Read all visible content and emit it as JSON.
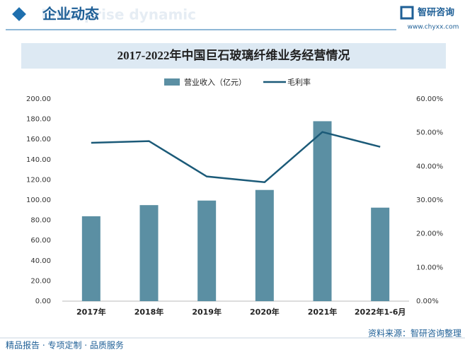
{
  "header": {
    "title": "企业动态",
    "watermark": "Enterprise dynamic",
    "logo_name": "智研咨询",
    "logo_url": "www.chyxx.com"
  },
  "chart_data": {
    "type": "bar",
    "title": "2017-2022年中国巨石玻璃纤维业务经营情况",
    "categories": [
      "2017年",
      "2018年",
      "2019年",
      "2020年",
      "2021年",
      "2022年1-6月"
    ],
    "series": [
      {
        "name": "营业收入（亿元）",
        "type": "bar",
        "color": "#5b8fa3",
        "values": [
          84,
          95,
          99.5,
          110,
          178,
          92.5
        ]
      },
      {
        "name": "毛利率",
        "type": "line",
        "axis": "y2",
        "color": "#1b5a78",
        "values": [
          47,
          47.5,
          37,
          35.3,
          50.2,
          45.8
        ]
      }
    ],
    "ylim": [
      0,
      200
    ],
    "yticks": [
      {
        "value": 0,
        "label": "0.00"
      },
      {
        "value": 20,
        "label": "20.00"
      },
      {
        "value": 40,
        "label": "40.00"
      },
      {
        "value": 60,
        "label": "60.00"
      },
      {
        "value": 80,
        "label": "80.00"
      },
      {
        "value": 100,
        "label": "100.00"
      },
      {
        "value": 120,
        "label": "120.00"
      },
      {
        "value": 140,
        "label": "140.00"
      },
      {
        "value": 160,
        "label": "160.00"
      },
      {
        "value": 180,
        "label": "180.00"
      },
      {
        "value": 200,
        "label": "200.00"
      }
    ],
    "y2lim": [
      0,
      60
    ],
    "y2ticks": [
      {
        "value": 0,
        "label": "0.00%"
      },
      {
        "value": 10,
        "label": "10.00%"
      },
      {
        "value": 20,
        "label": "20.00%"
      },
      {
        "value": 30,
        "label": "30.00%"
      },
      {
        "value": 40,
        "label": "40.00%"
      },
      {
        "value": 50,
        "label": "50.00%"
      },
      {
        "value": 60,
        "label": "60.00%"
      }
    ]
  },
  "footer": {
    "tagline": "精品报告 · 专项定制 · 品质服务",
    "source": "资料来源：智研咨询整理"
  }
}
